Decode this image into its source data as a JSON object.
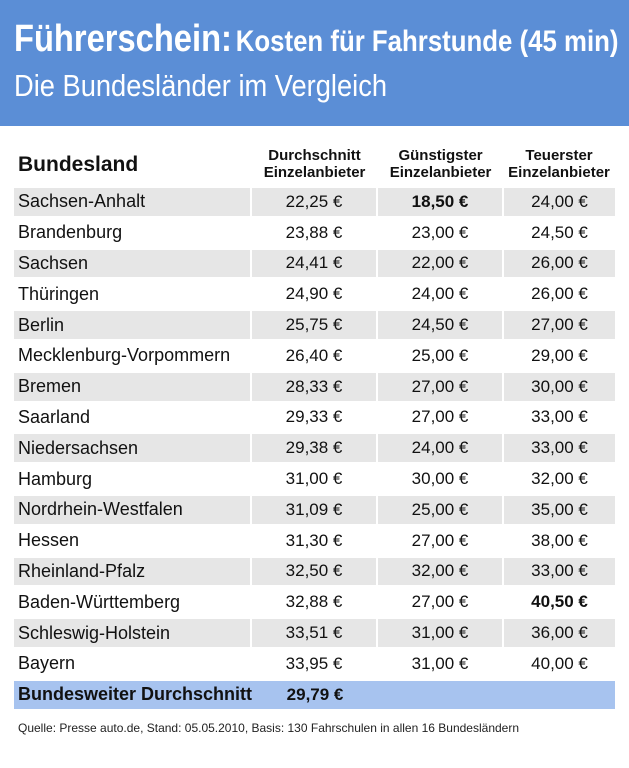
{
  "header": {
    "title_bold": "Führerschein:",
    "title_rest": "Kosten für Fahrstunde (45 min)",
    "subtitle": "Die Bundesländer im Vergleich",
    "background_color": "#5b8ed6"
  },
  "table": {
    "headers": {
      "land": "Bundesland",
      "avg": [
        "Durchschnitt",
        "Einzelanbieter"
      ],
      "cheapest": [
        "Günstigster",
        "Einzelanbieter"
      ],
      "most_expensive": [
        "Teuerster",
        "Einzelanbieter"
      ]
    },
    "rows": [
      {
        "land": "Sachsen-Anhalt",
        "avg": "22,25 €",
        "cheapest": "18,50 €",
        "expensive": "24,00 €"
      },
      {
        "land": "Brandenburg",
        "avg": "23,88 €",
        "cheapest": "23,00 €",
        "expensive": "24,50 €"
      },
      {
        "land": "Sachsen",
        "avg": "24,41 €",
        "cheapest": "22,00 €",
        "expensive": "26,00 €"
      },
      {
        "land": "Thüringen",
        "avg": "24,90 €",
        "cheapest": "24,00 €",
        "expensive": "26,00 €"
      },
      {
        "land": "Berlin",
        "avg": "25,75 €",
        "cheapest": "24,50 €",
        "expensive": "27,00 €"
      },
      {
        "land": "Mecklenburg-Vorpommern",
        "avg": "26,40 €",
        "cheapest": "25,00 €",
        "expensive": "29,00 €"
      },
      {
        "land": "Bremen",
        "avg": "28,33 €",
        "cheapest": "27,00 €",
        "expensive": "30,00 €"
      },
      {
        "land": "Saarland",
        "avg": "29,33 €",
        "cheapest": "27,00 €",
        "expensive": "33,00 €"
      },
      {
        "land": "Niedersachsen",
        "avg": "29,38 €",
        "cheapest": "24,00 €",
        "expensive": "33,00 €"
      },
      {
        "land": "Hamburg",
        "avg": "31,00 €",
        "cheapest": "30,00 €",
        "expensive": "32,00 €"
      },
      {
        "land": "Nordrhein-Westfalen",
        "avg": "31,09 €",
        "cheapest": "25,00 €",
        "expensive": "35,00 €"
      },
      {
        "land": "Hessen",
        "avg": "31,30 €",
        "cheapest": "27,00 €",
        "expensive": "38,00 €"
      },
      {
        "land": "Rheinland-Pfalz",
        "avg": "32,50 €",
        "cheapest": "32,00 €",
        "expensive": "33,00 €"
      },
      {
        "land": "Baden-Württemberg",
        "avg": "32,88 €",
        "cheapest": "27,00 €",
        "expensive": "40,50 €"
      },
      {
        "land": "Schleswig-Holstein",
        "avg": "33,51 €",
        "cheapest": "31,00 €",
        "expensive": "36,00 €"
      },
      {
        "land": "Bayern",
        "avg": "33,95 €",
        "cheapest": "31,00 €",
        "expensive": "40,00 €"
      }
    ],
    "total": {
      "label": "Bundesweiter Durchschnitt",
      "avg": "29,79 €"
    },
    "highlight": {
      "lowest_cheapest_row": 0,
      "highest_expensive_row": 13
    },
    "row_shade_color": "#e6e6e6",
    "total_row_color": "#a7c3ef"
  },
  "footer": {
    "source": "Quelle: Presse auto.de, Stand: 05.05.2010, Basis: 130 Fahrschulen in allen 16 Bundesländern"
  }
}
